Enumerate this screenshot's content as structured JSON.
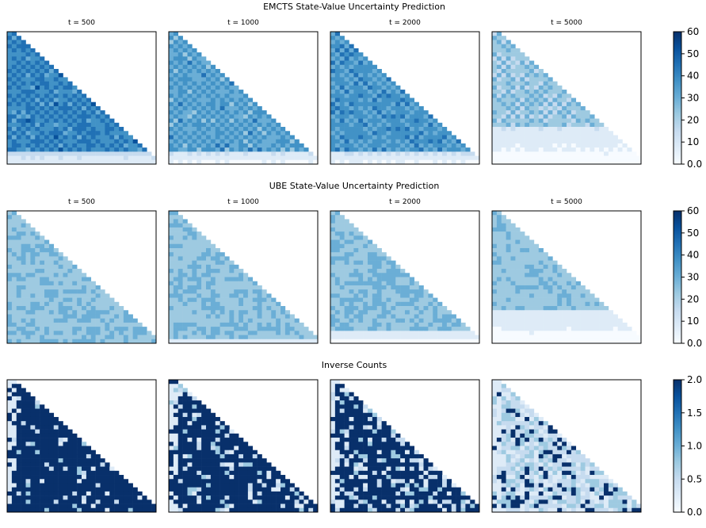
{
  "chart_data": [
    {
      "type": "heatmap",
      "title": "EMCTS State-Value Uncertainty Prediction",
      "colorbar": {
        "min": 0,
        "max": 60,
        "ticks": [
          "0.0",
          "10",
          "20",
          "30",
          "40",
          "50",
          "60"
        ],
        "colormap": "Blues"
      },
      "panels": [
        {
          "label": "t = 500",
          "fill": 0.74,
          "low_band": 0.1
        },
        {
          "label": "t = 1000",
          "fill": 0.62,
          "low_band": 0.12
        },
        {
          "label": "t = 2000",
          "fill": 0.66,
          "low_band": 0.12
        },
        {
          "label": "t = 5000",
          "fill": 0.45,
          "low_band": 0.3
        }
      ]
    },
    {
      "type": "heatmap",
      "title": "UBE State-Value Uncertainty Prediction",
      "colorbar": {
        "min": 0,
        "max": 60,
        "ticks": [
          "0.0",
          "10",
          "20",
          "30",
          "40",
          "50",
          "60"
        ],
        "colormap": "Blues"
      },
      "panels": [
        {
          "label": "t = 500",
          "fill": 0.42,
          "low_band": 0.03
        },
        {
          "label": "t = 1000",
          "fill": 0.42,
          "low_band": 0.05
        },
        {
          "label": "t = 2000",
          "fill": 0.43,
          "low_band": 0.12
        },
        {
          "label": "t = 5000",
          "fill": 0.4,
          "low_band": 0.28
        }
      ]
    },
    {
      "type": "heatmap",
      "title": "Inverse Counts",
      "colorbar": {
        "min": 0,
        "max": 2,
        "ticks": [
          "0.0",
          "0.5",
          "1.0",
          "1.5",
          "2.0"
        ],
        "colormap": "Blues"
      },
      "panels": [
        {
          "label": "",
          "fill": 0.9,
          "low_band": 0.0
        },
        {
          "label": "",
          "fill": 0.8,
          "low_band": 0.0
        },
        {
          "label": "",
          "fill": 0.7,
          "low_band": 0.0
        },
        {
          "label": "",
          "fill": 0.2,
          "low_band": 0.0
        }
      ]
    }
  ],
  "colors": {
    "darkest": "#08306b",
    "dark": "#08519c",
    "mid": "#4292c6",
    "light": "#9ecae1",
    "lightest": "#f7fbff"
  }
}
